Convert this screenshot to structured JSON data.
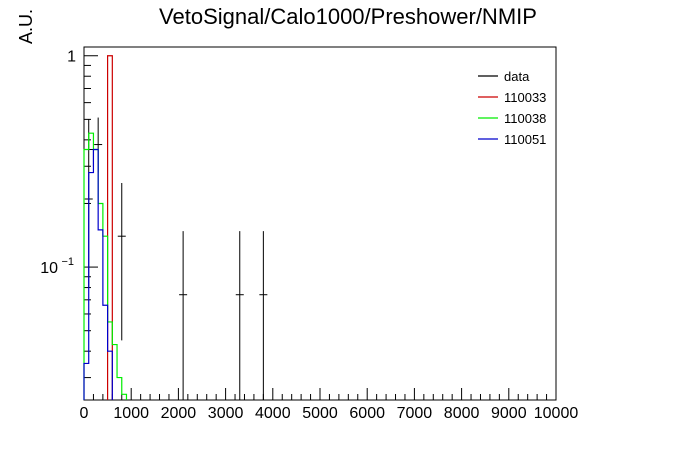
{
  "chart_data": {
    "type": "line",
    "title": "VetoSignal/Calo1000/Preshower/NMIP",
    "xlabel": "",
    "ylabel": "A.U.",
    "xlim": [
      0,
      10000
    ],
    "ylim": [
      0.0235,
      1.1
    ],
    "yscale": "log",
    "x_ticks": [
      0,
      1000,
      2000,
      3000,
      4000,
      5000,
      6000,
      7000,
      8000,
      9000,
      10000
    ],
    "y_tick_labels": [
      {
        "value": 1,
        "label": "1"
      },
      {
        "value": 0.1,
        "label": "10",
        "exponent": "−1"
      }
    ],
    "legend_position": "top-right",
    "series": [
      {
        "name": "data",
        "color": "#000000",
        "style": "points-with-errors",
        "points": [
          {
            "x": 100,
            "y": 0.21,
            "err_lo": 0.08,
            "err_hi": 0.5
          },
          {
            "x": 200,
            "y": 0.36,
            "err_lo": 0.3,
            "err_hi": 0.36
          },
          {
            "x": 300,
            "y": 0.38,
            "err_lo": 0.28,
            "err_hi": 0.51
          },
          {
            "x": 800,
            "y": 0.14,
            "err_lo": 0.045,
            "err_hi": 0.25
          },
          {
            "x": 2100,
            "y": 0.074,
            "err_lo": 0.0235,
            "err_hi": 0.148
          },
          {
            "x": 3300,
            "y": 0.074,
            "err_lo": 0.0235,
            "err_hi": 0.148
          },
          {
            "x": 3800,
            "y": 0.074,
            "err_lo": 0.0235,
            "err_hi": 0.148
          }
        ]
      },
      {
        "name": "110033",
        "color": "#cc0000",
        "style": "step",
        "bins": [
          {
            "x0": 500,
            "x1": 600,
            "y": 1.0
          }
        ]
      },
      {
        "name": "110038",
        "color": "#00ee00",
        "style": "step",
        "bins": [
          {
            "x0": 0,
            "x1": 100,
            "y": 0.36
          },
          {
            "x0": 100,
            "x1": 200,
            "y": 0.43
          },
          {
            "x0": 200,
            "x1": 300,
            "y": 0.36
          },
          {
            "x0": 300,
            "x1": 400,
            "y": 0.2
          },
          {
            "x0": 400,
            "x1": 500,
            "y": 0.14
          },
          {
            "x0": 500,
            "x1": 600,
            "y": 0.055
          },
          {
            "x0": 600,
            "x1": 700,
            "y": 0.043
          },
          {
            "x0": 700,
            "x1": 800,
            "y": 0.03
          },
          {
            "x0": 800,
            "x1": 900,
            "y": 0.025
          }
        ]
      },
      {
        "name": "110051",
        "color": "#0000cc",
        "style": "step",
        "bins": [
          {
            "x0": 0,
            "x1": 100,
            "y": 0.035
          },
          {
            "x0": 100,
            "x1": 200,
            "y": 0.28
          },
          {
            "x0": 200,
            "x1": 300,
            "y": 0.36
          },
          {
            "x0": 300,
            "x1": 400,
            "y": 0.15
          },
          {
            "x0": 400,
            "x1": 500,
            "y": 0.066
          },
          {
            "x0": 500,
            "x1": 600,
            "y": 0.04
          }
        ]
      }
    ]
  }
}
